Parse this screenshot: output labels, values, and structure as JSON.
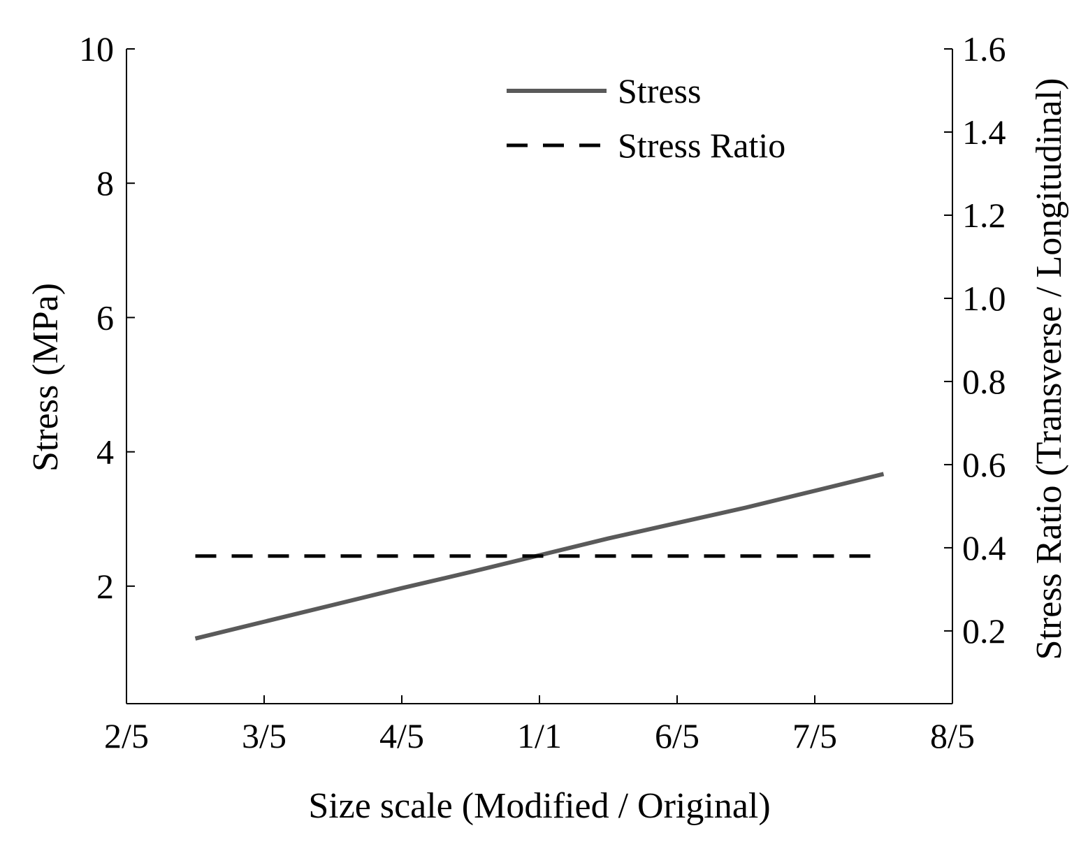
{
  "chart_data": {
    "type": "line",
    "xlabel": "Size scale (Modified / Original)",
    "ylabel_left": "Stress (MPa)",
    "ylabel_right": "Stress Ratio (Transverse / Longitudinal)",
    "x_ticks": [
      {
        "value": 0.4,
        "label": "2/5"
      },
      {
        "value": 0.6,
        "label": "3/5"
      },
      {
        "value": 0.8,
        "label": "4/5"
      },
      {
        "value": 1.0,
        "label": "1/1"
      },
      {
        "value": 1.2,
        "label": "6/5"
      },
      {
        "value": 1.4,
        "label": "7/5"
      },
      {
        "value": 1.6,
        "label": "8/5"
      }
    ],
    "xlim": [
      0.4,
      1.6
    ],
    "y_left_ticks": [
      2,
      4,
      6,
      8,
      10
    ],
    "y_left_lim": [
      0.25,
      10
    ],
    "y_right_ticks": [
      "0.2",
      "0.4",
      "0.6",
      "0.8",
      "1.0",
      "1.2",
      "1.4",
      "1.6"
    ],
    "y_right_lim": [
      0.025,
      1.6
    ],
    "series": [
      {
        "name": "Stress",
        "axis": "left",
        "style": "solid",
        "color": "#5a5a5a",
        "x": [
          0.5,
          0.6,
          0.7,
          0.8,
          0.9,
          1.0,
          1.1,
          1.2,
          1.3,
          1.4,
          1.5
        ],
        "y": [
          1.22,
          1.47,
          1.72,
          1.97,
          2.21,
          2.46,
          2.71,
          2.94,
          3.17,
          3.42,
          3.67
        ]
      },
      {
        "name": "Stress Ratio",
        "axis": "right",
        "style": "dashed",
        "color": "#000000",
        "x": [
          0.5,
          1.5
        ],
        "y": [
          0.38,
          0.38
        ]
      }
    ],
    "legend": {
      "position": "top-center",
      "entries": [
        {
          "label": "Stress",
          "style": "solid",
          "color": "#5a5a5a"
        },
        {
          "label": "Stress Ratio",
          "style": "dashed",
          "color": "#000000"
        }
      ]
    }
  }
}
